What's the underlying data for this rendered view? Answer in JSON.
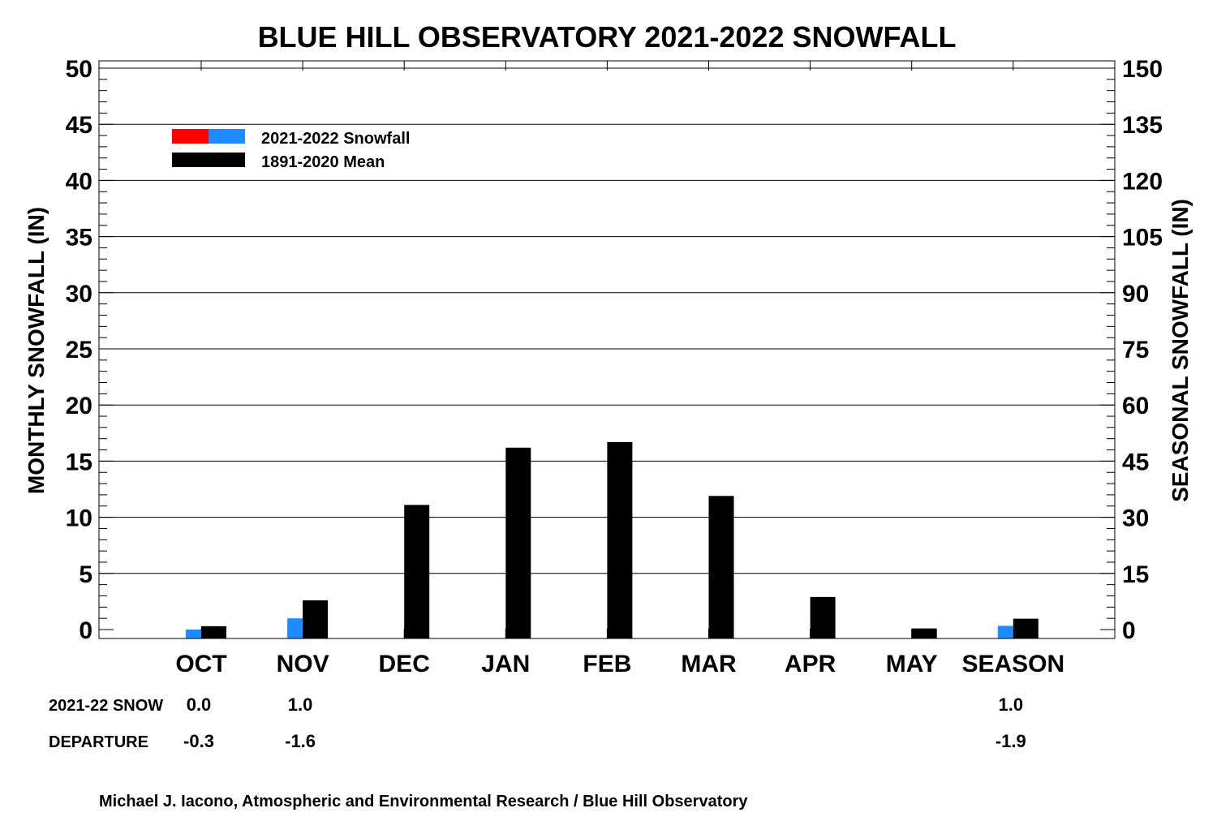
{
  "chart_data": {
    "type": "bar",
    "title": "BLUE HILL OBSERVATORY 2021-2022 SNOWFALL",
    "ylabel": "MONTHLY SNOWFALL (IN)",
    "ylabel_right": "SEASONAL SNOWFALL (IN)",
    "ylim": [
      0,
      50
    ],
    "ylim_right": [
      0,
      150
    ],
    "yticks": [
      "0",
      "5",
      "10",
      "15",
      "20",
      "25",
      "30",
      "35",
      "40",
      "45",
      "50"
    ],
    "yticks_right": [
      "0",
      "15",
      "30",
      "45",
      "60",
      "75",
      "90",
      "105",
      "120",
      "135",
      "150"
    ],
    "grid": true,
    "legend_position": "top-left",
    "categories": [
      "OCT",
      "NOV",
      "DEC",
      "JAN",
      "FEB",
      "MAR",
      "APR",
      "MAY",
      "SEASON"
    ],
    "series": [
      {
        "name": "2021-2022 Snowfall",
        "values": [
          0.0,
          1.0,
          null,
          null,
          null,
          null,
          null,
          null,
          1.0
        ],
        "colors": [
          "#ff0000",
          "#1e8cff"
        ],
        "axis": "left, SEASON on right"
      },
      {
        "name": "1891-2020 Mean",
        "values": [
          0.3,
          2.6,
          11.1,
          16.2,
          16.7,
          11.9,
          2.9,
          0.1,
          2.9
        ],
        "color": "#000000",
        "axis": "left, SEASON on right"
      }
    ],
    "table": {
      "rows": [
        {
          "label": "2021-22 SNOW",
          "values": [
            "0.0",
            "1.0",
            "",
            "",
            "",
            "",
            "",
            "",
            "1.0"
          ]
        },
        {
          "label": "DEPARTURE",
          "values": [
            "-0.3",
            "-1.6",
            "",
            "",
            "",
            "",
            "",
            "",
            "-1.9"
          ]
        }
      ]
    },
    "credit": "Michael J. Iacono, Atmospheric and Environmental Research / Blue Hill Observatory"
  }
}
